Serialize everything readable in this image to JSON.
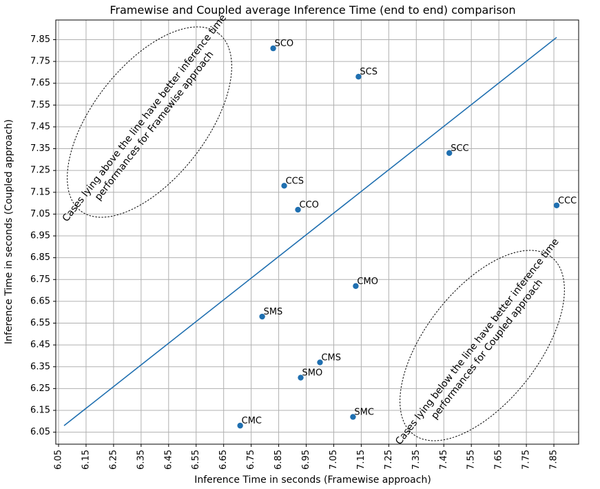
{
  "chart_data": {
    "type": "scatter",
    "title": "Framewise and Coupled average Inference Time (end to end) comparison",
    "xlabel": "Inference Time in seconds (Framewise approach)",
    "ylabel": "Inference Time in seconds (Coupled approach)",
    "xlim": [
      6.04,
      7.94
    ],
    "ylim": [
      5.995,
      7.94
    ],
    "x_ticks": [
      "6.05",
      "6.15",
      "6.25",
      "6.35",
      "6.45",
      "6.55",
      "6.65",
      "6.75",
      "6.85",
      "6.95",
      "7.05",
      "7.15",
      "7.25",
      "7.35",
      "7.45",
      "7.55",
      "7.65",
      "7.75",
      "7.85"
    ],
    "y_ticks": [
      "6.05",
      "6.15",
      "6.25",
      "6.35",
      "6.45",
      "6.55",
      "6.65",
      "6.75",
      "6.85",
      "6.95",
      "7.05",
      "7.15",
      "7.25",
      "7.35",
      "7.45",
      "7.55",
      "7.65",
      "7.75",
      "7.85"
    ],
    "grid": true,
    "point_color": "#1f6fb0",
    "line_color": "#1f6fb0",
    "reference_line": {
      "x": [
        6.07,
        7.86
      ],
      "y": [
        6.08,
        7.86
      ]
    },
    "points": [
      {
        "label": "SCO",
        "x": 6.83,
        "y": 7.81
      },
      {
        "label": "SCS",
        "x": 7.14,
        "y": 7.68
      },
      {
        "label": "SCC",
        "x": 7.47,
        "y": 7.33
      },
      {
        "label": "CCS",
        "x": 6.87,
        "y": 7.18
      },
      {
        "label": "CCO",
        "x": 6.92,
        "y": 7.07
      },
      {
        "label": "CCC",
        "x": 7.86,
        "y": 7.09
      },
      {
        "label": "CMO",
        "x": 7.13,
        "y": 6.72
      },
      {
        "label": "SMS",
        "x": 6.79,
        "y": 6.58
      },
      {
        "label": "CMS",
        "x": 7.0,
        "y": 6.37
      },
      {
        "label": "SMO",
        "x": 6.93,
        "y": 6.3
      },
      {
        "label": "SMC",
        "x": 7.12,
        "y": 6.12
      },
      {
        "label": "CMC",
        "x": 6.71,
        "y": 6.08
      }
    ],
    "annotations": [
      {
        "lines": [
          "Cases lying above the line have better inference time",
          "performances for Framewise approach"
        ],
        "position": "upper-left"
      },
      {
        "lines": [
          "Cases lying below the line have better inference time",
          "performances for Coupled approach"
        ],
        "position": "lower-right"
      }
    ]
  }
}
